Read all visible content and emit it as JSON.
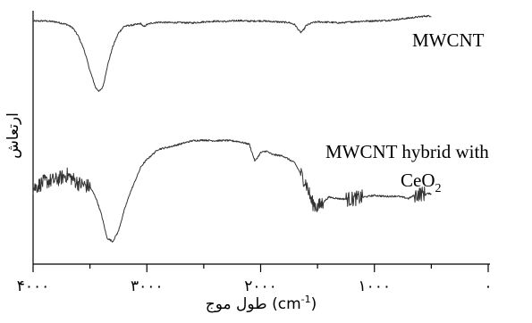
{
  "chart_data": {
    "type": "line",
    "title": "",
    "xlabel": "طول موج (cm-1)",
    "xlabel_main": "طول موج",
    "xlabel_open": "(cm",
    "xlabel_sup": "-1",
    "xlabel_close": ")",
    "ylabel": "ارتعاش",
    "xlim": [
      4000,
      0
    ],
    "x_ticks": [
      4000,
      3000,
      2000,
      1000,
      0
    ],
    "x_tick_labels": [
      "۴۰۰۰",
      "۳۰۰۰",
      "۲۰۰۰",
      "۱۰۰۰",
      "۰"
    ],
    "x_minor_ticks": [
      3500,
      2500,
      1500,
      500
    ],
    "y_ticks_shown": false,
    "grid": false,
    "series": [
      {
        "name": "MWCNT",
        "label_lines": [
          "MWCNT"
        ],
        "color": "#333333",
        "x": [
          4000,
          3900,
          3800,
          3700,
          3650,
          3600,
          3550,
          3500,
          3450,
          3420,
          3400,
          3380,
          3350,
          3300,
          3250,
          3200,
          3100,
          3050,
          3030,
          3000,
          2950,
          2900,
          2800,
          2700,
          2600,
          2500,
          2400,
          2300,
          2200,
          2100,
          2000,
          1900,
          1800,
          1750,
          1700,
          1650,
          1630,
          1600,
          1550,
          1500,
          1400,
          1300,
          1200,
          1100,
          1000,
          900,
          800,
          700,
          600,
          550,
          500
        ],
        "y": [
          98.5,
          98.6,
          98.3,
          97.5,
          96.5,
          94,
          90,
          84,
          79,
          78,
          78.5,
          80,
          85,
          91,
          95,
          97,
          97.5,
          97.8,
          96.8,
          97.5,
          98,
          98.2,
          98.1,
          98.1,
          98,
          98.3,
          98.5,
          98.4,
          98.7,
          98.5,
          98.6,
          98.4,
          98.2,
          98.1,
          97.5,
          95.2,
          95.6,
          97.2,
          98,
          98.3,
          98.2,
          98,
          98.3,
          98.5,
          98.6,
          98.7,
          99,
          99.4,
          99.8,
          100,
          100
        ]
      },
      {
        "name": "MWCNT hybrid with CeO2",
        "label_lines": [
          "MWCNT hybrid with",
          "CeO",
          "2"
        ],
        "color": "#111111",
        "noisy_x_ranges": [
          [
            4000,
            3500
          ],
          [
            1650,
            1450
          ],
          [
            1250,
            1100
          ],
          [
            650,
            550
          ]
        ],
        "x": [
          4000,
          3900,
          3800,
          3700,
          3600,
          3500,
          3450,
          3400,
          3350,
          3300,
          3250,
          3200,
          3150,
          3100,
          3050,
          3000,
          2900,
          2800,
          2700,
          2600,
          2500,
          2400,
          2300,
          2200,
          2100,
          2050,
          2000,
          1950,
          1900,
          1800,
          1700,
          1650,
          1600,
          1550,
          1500,
          1450,
          1400,
          1300,
          1200,
          1100,
          1000,
          900,
          800,
          700,
          650,
          600,
          550,
          500
        ],
        "y": [
          49.5,
          51.5,
          52,
          53.5,
          51,
          50,
          47,
          42,
          35,
          34,
          37,
          43,
          48,
          52,
          56,
          58,
          61,
          61.7,
          62.6,
          63.5,
          63.7,
          63.5,
          63.6,
          63.3,
          62.5,
          57.5,
          60,
          60.5,
          59.5,
          59,
          57,
          54,
          51,
          45.5,
          44,
          45.5,
          47,
          46.5,
          46.4,
          47,
          47.5,
          47.2,
          47.3,
          46.6,
          47.5,
          48,
          48,
          48
        ]
      }
    ]
  }
}
